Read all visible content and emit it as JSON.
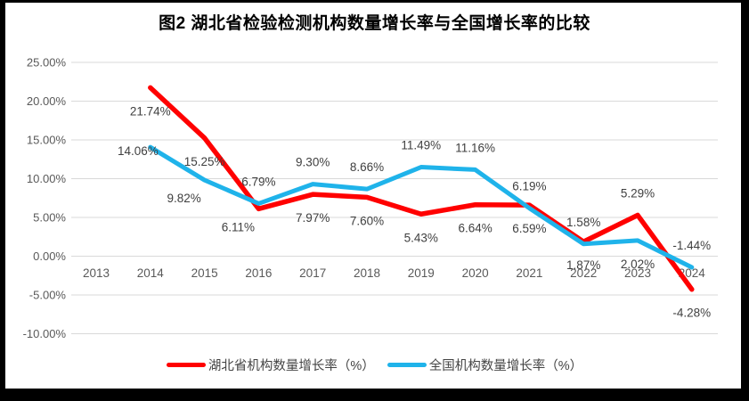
{
  "page": {
    "frame_color": "#000000",
    "background": "#FFFFFF"
  },
  "chart_data": {
    "type": "line",
    "title": "图2  湖北省检验检测机构数量增长率与全国增长率的比较",
    "categories": [
      "2013",
      "2014",
      "2015",
      "2016",
      "2017",
      "2018",
      "2019",
      "2020",
      "2021",
      "2022",
      "2023",
      "2024"
    ],
    "series": [
      {
        "name": "湖北省机构数量增长率（%）",
        "color": "#FF0000",
        "values": [
          null,
          21.74,
          15.25,
          6.11,
          7.97,
          7.6,
          5.43,
          6.64,
          6.59,
          1.87,
          5.29,
          -4.28
        ],
        "point_labels": [
          "",
          "21.74%",
          "15.25%",
          "6.11%",
          "7.97%",
          "7.60%",
          "5.43%",
          "6.64%",
          "6.59%",
          "1.87%",
          "5.29%",
          "-4.28%"
        ],
        "label_positions": [
          "",
          "below",
          "below",
          "below-left",
          "below",
          "below",
          "below",
          "below",
          "below",
          "below",
          "above",
          "below"
        ]
      },
      {
        "name": "全国机构数量增长率（%）",
        "color": "#1FB3EA",
        "values": [
          null,
          14.06,
          9.82,
          6.79,
          9.3,
          8.66,
          11.49,
          11.16,
          6.19,
          1.58,
          2.02,
          -1.44
        ],
        "point_labels": [
          "",
          "14.06%",
          "9.82%",
          "6.79%",
          "9.30%",
          "8.66%",
          "11.49%",
          "11.16%",
          "6.19%",
          "1.58%",
          "2.02%",
          "-1.44%"
        ],
        "label_positions": [
          "",
          "left",
          "below-left",
          "above",
          "above",
          "above",
          "above",
          "above",
          "above",
          "above",
          "below",
          "above"
        ]
      }
    ],
    "y_axis": {
      "min": -10,
      "max": 25,
      "step": 5,
      "tick_labels": [
        "25.00%",
        "20.00%",
        "15.00%",
        "10.00%",
        "5.00%",
        "0.00%",
        "-5.00%",
        "-10.00%"
      ]
    },
    "x_axis": {
      "label_row_y_hint": "between 0% and -5% gridlines"
    },
    "grid": true,
    "legend_position": "bottom",
    "colors": {
      "grid": "#D9D9D9",
      "axis_labels": "#595959",
      "data_labels": "#3F3F3F"
    }
  }
}
